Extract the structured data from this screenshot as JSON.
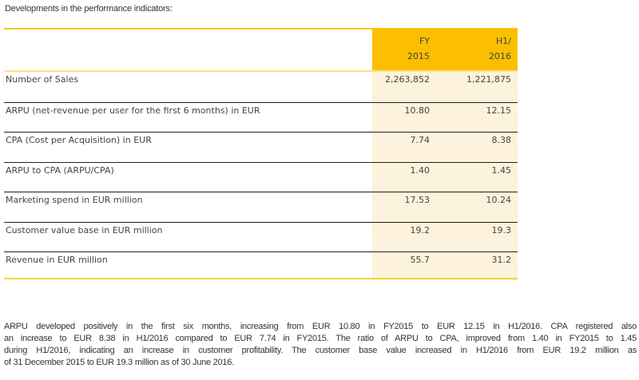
{
  "intro": "Developments in the performance indicators:",
  "table": {
    "columns": [
      [
        "FY",
        "2015"
      ],
      [
        "H1/",
        "2016"
      ]
    ],
    "rows": [
      {
        "label": "Number of Sales",
        "fy2015": "2,263,852",
        "h12016": "1,221,875"
      },
      {
        "label": "ARPU (net-revenue per user for the first 6 months) in EUR",
        "fy2015": "10.80",
        "h12016": "12.15"
      },
      {
        "label": "CPA (Cost per Acquisition) in EUR",
        "fy2015": "7.74",
        "h12016": "8.38"
      },
      {
        "label": "ARPU to CPA (ARPU/CPA)",
        "fy2015": "1.40",
        "h12016": "1.45"
      },
      {
        "label": "Marketing spend in EUR million",
        "fy2015": "17.53",
        "h12016": "10.24"
      },
      {
        "label": "Customer value base in EUR million",
        "fy2015": "19.2",
        "h12016": "19.3"
      },
      {
        "label": "Revenue in EUR million",
        "fy2015": "55.7",
        "h12016": "31.2"
      }
    ]
  },
  "paragraph": [
    "ARPU developed positively in the first six months, increasing from EUR 10.80 in FY2015 to EUR 12.15 in H1/2016. CPA registered also",
    "an increase to EUR 8.38 in H1/2016 compared to EUR 7.74 in FY2015. The ratio of ARPU to CPA, improved from 1.40 in FY2015 to 1.45",
    "during H1/2016, indicating an increase in customer profitability. The customer base value increased in H1/2016 from EUR 19.2 million as",
    "of 31 December 2015 to EUR 19.3 million as of 30 June 2016."
  ],
  "colors": {
    "header_accent": "#fbbf00",
    "column_highlight": "#fdf3dc",
    "rule": "#222222"
  }
}
